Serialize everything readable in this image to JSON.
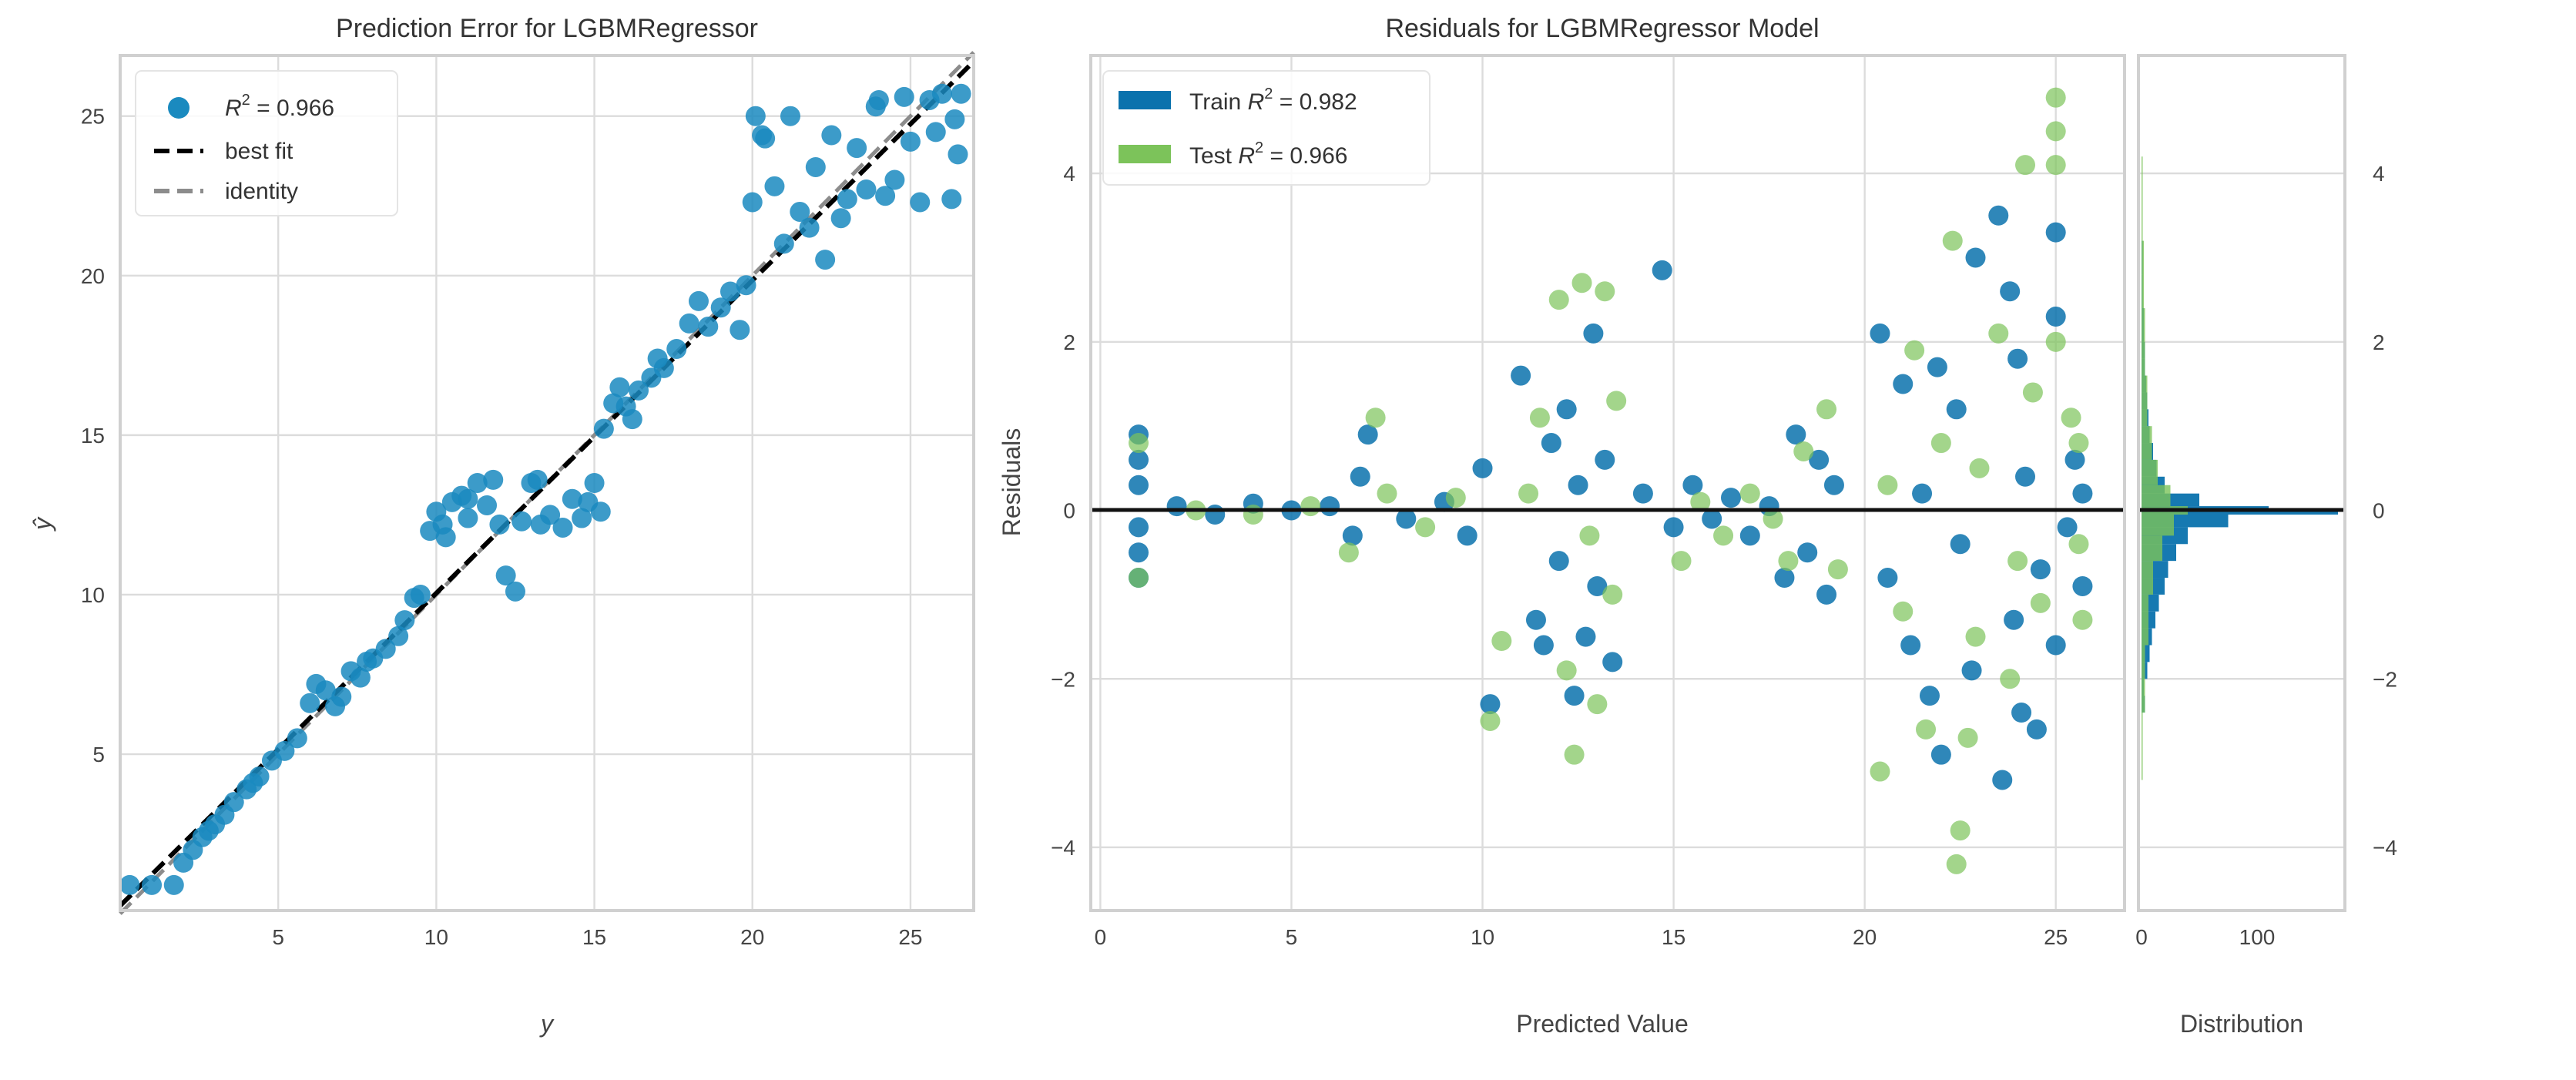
{
  "chart_data": [
    {
      "type": "scatter",
      "title": "Prediction Error for LGBMRegressor",
      "xlabel": "y",
      "ylabel": "ŷ",
      "xlim": [
        0.0,
        27.0
      ],
      "ylim": [
        0.1,
        26.9
      ],
      "xticks": [
        "5",
        "10",
        "15",
        "20",
        "25"
      ],
      "yticks": [
        "5",
        "10",
        "15",
        "20",
        "25"
      ],
      "grid": true,
      "legend_placement": "top-left",
      "legend": [
        {
          "kind": "marker",
          "r_symbol": "R",
          "sup": "2",
          "text": " = 0.966"
        },
        {
          "kind": "best-fit",
          "text": "best fit"
        },
        {
          "kind": "identity",
          "text": "identity"
        }
      ],
      "colors": {
        "points": "#1a8abf",
        "best_fit": "#000000",
        "identity": "#8c8c8c"
      },
      "best_fit": {
        "intercept": 0.25,
        "slope": 0.98
      },
      "points": [
        [
          0.3,
          0.9
        ],
        [
          1,
          0.9
        ],
        [
          1.7,
          0.9
        ],
        [
          2,
          1.6
        ],
        [
          2.3,
          2
        ],
        [
          2.6,
          2.4
        ],
        [
          3,
          2.8
        ],
        [
          3.3,
          3.1
        ],
        [
          3.6,
          3.5
        ],
        [
          4,
          3.9
        ],
        [
          4.4,
          4.3
        ],
        [
          4.8,
          4.8
        ],
        [
          5.2,
          5.1
        ],
        [
          5.6,
          5.5
        ],
        [
          6,
          6.6
        ],
        [
          6.2,
          7.2
        ],
        [
          6.5,
          7
        ],
        [
          6.8,
          6.5
        ],
        [
          7,
          6.8
        ],
        [
          7.3,
          7.6
        ],
        [
          7.6,
          7.4
        ],
        [
          8,
          8
        ],
        [
          8.4,
          8.3
        ],
        [
          8.8,
          8.7
        ],
        [
          9,
          9.2
        ],
        [
          9.3,
          9.9
        ],
        [
          9.5,
          10
        ],
        [
          9.8,
          12
        ],
        [
          10,
          12.6
        ],
        [
          10.3,
          11.8
        ],
        [
          10.5,
          12.9
        ],
        [
          10.8,
          13.1
        ],
        [
          11,
          12.4
        ],
        [
          11.3,
          13.5
        ],
        [
          11.6,
          12.8
        ],
        [
          11.8,
          13.6
        ],
        [
          12,
          12.2
        ],
        [
          12.2,
          10.6
        ],
        [
          12.5,
          10.1
        ],
        [
          12.7,
          12.3
        ],
        [
          13,
          13.5
        ],
        [
          13.3,
          12.2
        ],
        [
          13.6,
          12.5
        ],
        [
          14,
          12.1
        ],
        [
          14.3,
          13
        ],
        [
          14.6,
          12.4
        ],
        [
          14.8,
          12.9
        ],
        [
          15,
          13.5
        ],
        [
          15.2,
          12.6
        ],
        [
          15.3,
          15.2
        ],
        [
          15.6,
          16
        ],
        [
          16,
          15.9
        ],
        [
          16.4,
          16.4
        ],
        [
          16.8,
          16.8
        ],
        [
          17.2,
          17.1
        ],
        [
          17.6,
          17.7
        ],
        [
          18,
          18.5
        ],
        [
          18.3,
          19.2
        ],
        [
          18.6,
          18.4
        ],
        [
          19,
          19
        ],
        [
          19.3,
          19.5
        ],
        [
          19.6,
          18.3
        ],
        [
          19.8,
          19.7
        ],
        [
          20,
          22.3
        ],
        [
          20.1,
          25
        ],
        [
          20.4,
          24.3
        ],
        [
          20.7,
          22.8
        ],
        [
          21,
          21
        ],
        [
          21.2,
          25
        ],
        [
          21.5,
          22
        ],
        [
          21.8,
          21.5
        ],
        [
          22,
          23.4
        ],
        [
          22.3,
          20.5
        ],
        [
          22.5,
          24.4
        ],
        [
          22.8,
          21.8
        ],
        [
          23,
          22.4
        ],
        [
          23.3,
          24
        ],
        [
          23.6,
          22.7
        ],
        [
          23.9,
          25.3
        ],
        [
          24.2,
          22.5
        ],
        [
          24.5,
          23
        ],
        [
          24.8,
          25.6
        ],
        [
          25,
          24.2
        ],
        [
          25.3,
          22.3
        ],
        [
          25.6,
          25.5
        ],
        [
          26,
          25.7
        ],
        [
          26.3,
          22.4
        ],
        [
          26.5,
          23.8
        ],
        [
          26.6,
          25.7
        ],
        [
          26.4,
          24.9
        ],
        [
          17,
          17.4
        ],
        [
          16.2,
          15.5
        ],
        [
          15.8,
          16.5
        ],
        [
          7.8,
          7.9
        ],
        [
          4.2,
          4.1
        ],
        [
          2.8,
          2.6
        ],
        [
          11,
          13
        ],
        [
          10.2,
          12.2
        ],
        [
          13.2,
          13.6
        ],
        [
          20.3,
          24.4
        ],
        [
          24,
          25.5
        ],
        [
          25.8,
          24.5
        ]
      ]
    },
    {
      "type": "scatter",
      "title": "Residuals for LGBMRegressor Model",
      "xlabel": "Predicted Value",
      "ylabel": "Residuals",
      "xlim": [
        -0.25,
        26.8
      ],
      "ylim": [
        -4.75,
        5.4
      ],
      "xticks": [
        "0",
        "5",
        "10",
        "15",
        "20",
        "25"
      ],
      "yticks": [
        "4",
        "2",
        "0",
        "−2",
        "−4"
      ],
      "grid": true,
      "legend_placement": "top-left",
      "colors": {
        "train": "#0a72ad",
        "test": "#7cc35a",
        "zero_line": "#111111"
      },
      "series": [
        {
          "name": "Train",
          "r_symbol": "R",
          "sup": "2",
          "text": " = 0.982",
          "points": [
            [
              1,
              0.9
            ],
            [
              1,
              0.6
            ],
            [
              1,
              0.3
            ],
            [
              1,
              -0.2
            ],
            [
              1,
              -0.5
            ],
            [
              1,
              -0.8
            ],
            [
              2,
              0.05
            ],
            [
              3,
              -0.05
            ],
            [
              4,
              0.08
            ],
            [
              5,
              0
            ],
            [
              6,
              0.05
            ],
            [
              6.6,
              -0.3
            ],
            [
              6.8,
              0.4
            ],
            [
              7,
              0.9
            ],
            [
              8,
              -0.1
            ],
            [
              9,
              0.1
            ],
            [
              9.6,
              -0.3
            ],
            [
              10,
              0.5
            ],
            [
              10.2,
              -2.3
            ],
            [
              11,
              1.6
            ],
            [
              11.4,
              -1.3
            ],
            [
              11.8,
              0.8
            ],
            [
              12,
              -0.6
            ],
            [
              12.2,
              1.2
            ],
            [
              12.4,
              -2.2
            ],
            [
              12.5,
              0.3
            ],
            [
              12.7,
              -1.5
            ],
            [
              12.9,
              2.1
            ],
            [
              13,
              -0.9
            ],
            [
              13.2,
              0.6
            ],
            [
              13.4,
              -1.8
            ],
            [
              11.6,
              -1.6
            ],
            [
              14.7,
              2.85
            ],
            [
              14.2,
              0.2
            ],
            [
              15,
              -0.2
            ],
            [
              15.5,
              0.3
            ],
            [
              16,
              -0.1
            ],
            [
              16.5,
              0.15
            ],
            [
              17,
              -0.3
            ],
            [
              17.5,
              0.05
            ],
            [
              17.9,
              -0.8
            ],
            [
              18.2,
              0.9
            ],
            [
              18.5,
              -0.5
            ],
            [
              18.8,
              0.6
            ],
            [
              19,
              -1
            ],
            [
              19.2,
              0.3
            ],
            [
              20.4,
              2.1
            ],
            [
              20.6,
              -0.8
            ],
            [
              21,
              1.5
            ],
            [
              21.2,
              -1.6
            ],
            [
              21.5,
              0.2
            ],
            [
              21.7,
              -2.2
            ],
            [
              21.9,
              1.7
            ],
            [
              22,
              -2.9
            ],
            [
              22.4,
              1.2
            ],
            [
              22.5,
              -0.4
            ],
            [
              22.8,
              -1.9
            ],
            [
              22.9,
              3
            ],
            [
              23.5,
              3.5
            ],
            [
              23.6,
              -3.2
            ],
            [
              23.8,
              2.6
            ],
            [
              23.9,
              -1.3
            ],
            [
              24,
              1.8
            ],
            [
              24.1,
              -2.4
            ],
            [
              24.2,
              0.4
            ],
            [
              24.5,
              -2.6
            ],
            [
              24.6,
              -0.7
            ],
            [
              25,
              3.3
            ],
            [
              25,
              2.3
            ],
            [
              25,
              -1.6
            ],
            [
              25.3,
              -0.2
            ],
            [
              25.5,
              0.6
            ],
            [
              25.7,
              -0.9
            ],
            [
              25.7,
              0.2
            ]
          ]
        },
        {
          "name": "Test",
          "r_symbol": "R",
          "sup": "2",
          "text": " = 0.966",
          "points": [
            [
              1,
              0.8
            ],
            [
              1,
              -0.8
            ],
            [
              2.5,
              0
            ],
            [
              4,
              -0.05
            ],
            [
              5.5,
              0.05
            ],
            [
              6.5,
              -0.5
            ],
            [
              7.2,
              1.1
            ],
            [
              7.5,
              0.2
            ],
            [
              8.5,
              -0.2
            ],
            [
              9.3,
              0.15
            ],
            [
              10.2,
              -2.5
            ],
            [
              10.5,
              -1.55
            ],
            [
              11.2,
              0.2
            ],
            [
              11.5,
              1.1
            ],
            [
              12,
              2.5
            ],
            [
              12.2,
              -1.9
            ],
            [
              12.4,
              -2.9
            ],
            [
              12.6,
              2.7
            ],
            [
              12.8,
              -0.3
            ],
            [
              13,
              -2.3
            ],
            [
              13.2,
              2.6
            ],
            [
              13.4,
              -1
            ],
            [
              13.5,
              1.3
            ],
            [
              15.2,
              -0.6
            ],
            [
              15.7,
              0.1
            ],
            [
              16.3,
              -0.3
            ],
            [
              17,
              0.2
            ],
            [
              17.6,
              -0.1
            ],
            [
              18,
              -0.6
            ],
            [
              18.4,
              0.7
            ],
            [
              19,
              1.2
            ],
            [
              19.3,
              -0.7
            ],
            [
              20.4,
              -3.1
            ],
            [
              20.6,
              0.3
            ],
            [
              21,
              -1.2
            ],
            [
              21.3,
              1.9
            ],
            [
              21.6,
              -2.6
            ],
            [
              22,
              0.8
            ],
            [
              22.3,
              3.2
            ],
            [
              22.4,
              -4.2
            ],
            [
              22.5,
              -3.8
            ],
            [
              22.7,
              -2.7
            ],
            [
              22.9,
              -1.5
            ],
            [
              23,
              0.5
            ],
            [
              23.5,
              2.1
            ],
            [
              23.8,
              -2
            ],
            [
              24,
              -0.6
            ],
            [
              24.2,
              4.1
            ],
            [
              24.4,
              1.4
            ],
            [
              24.6,
              -1.1
            ],
            [
              25,
              4.9
            ],
            [
              25,
              4.5
            ],
            [
              25,
              4.1
            ],
            [
              25,
              2
            ],
            [
              25.4,
              1.1
            ],
            [
              25.6,
              -0.4
            ],
            [
              25.7,
              -1.3
            ],
            [
              25.6,
              0.8
            ]
          ]
        }
      ]
    },
    {
      "type": "bar",
      "orientation": "horizontal",
      "xlabel": "Distribution",
      "xlim": [
        0,
        176
      ],
      "xticks": [
        "0",
        "100"
      ],
      "yticks": [
        "4",
        "2",
        "0",
        "−2",
        "−4"
      ],
      "series": [
        {
          "name": "Train",
          "bins": [
            [
              -2.4,
              -2.2,
              3
            ],
            [
              -2.2,
              -2,
              2
            ],
            [
              -2,
              -1.8,
              5
            ],
            [
              -1.8,
              -1.6,
              7
            ],
            [
              -1.6,
              -1.4,
              9
            ],
            [
              -1.4,
              -1.2,
              12
            ],
            [
              -1.2,
              -1,
              15
            ],
            [
              -1,
              -0.8,
              20
            ],
            [
              -0.8,
              -0.6,
              23
            ],
            [
              -0.6,
              -0.4,
              30
            ],
            [
              -0.4,
              -0.2,
              40
            ],
            [
              -0.2,
              -0.05,
              75
            ],
            [
              -0.05,
              0,
              170
            ],
            [
              0,
              0.05,
              110
            ],
            [
              0.05,
              0.2,
              50
            ],
            [
              0.2,
              0.4,
              20
            ],
            [
              0.4,
              0.6,
              13
            ],
            [
              0.6,
              0.8,
              10
            ],
            [
              0.8,
              1,
              7
            ],
            [
              1,
              1.2,
              6
            ],
            [
              1.2,
              1.4,
              5
            ],
            [
              1.4,
              1.6,
              4
            ],
            [
              1.6,
              1.8,
              3
            ],
            [
              1.8,
              2,
              3
            ],
            [
              2,
              2.4,
              2
            ],
            [
              2.4,
              2.8,
              1
            ],
            [
              2.8,
              3.2,
              1
            ]
          ]
        },
        {
          "name": "Test",
          "bins": [
            [
              -3.2,
              -2.4,
              1
            ],
            [
              -2.4,
              -1.6,
              3
            ],
            [
              -1.6,
              -1,
              6
            ],
            [
              -1,
              -0.6,
              10
            ],
            [
              -0.6,
              -0.3,
              18
            ],
            [
              -0.3,
              -0.05,
              28
            ],
            [
              -0.05,
              0.05,
              40
            ],
            [
              0.05,
              0.3,
              25
            ],
            [
              0.3,
              0.6,
              14
            ],
            [
              0.6,
              1,
              9
            ],
            [
              1,
              1.6,
              5
            ],
            [
              1.6,
              2.4,
              3
            ],
            [
              2.4,
              3.2,
              2
            ],
            [
              3.2,
              4.2,
              1
            ]
          ]
        }
      ]
    }
  ]
}
